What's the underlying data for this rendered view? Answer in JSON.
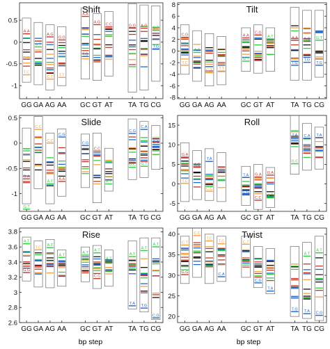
{
  "chart_data": {
    "type": "bar",
    "description_series_colors": {
      "red": "#c0392b",
      "blue": "#1f66c9",
      "orange": "#f0a040",
      "green": "#2ecc40",
      "black": "#111111"
    },
    "categories": [
      "GG",
      "GA",
      "AG",
      "AA",
      "GC",
      "GT",
      "AT",
      "TA",
      "TG",
      "CG"
    ],
    "xlabel": "bp step",
    "panels": [
      {
        "title": "Shift",
        "ylim": [
          -1.3,
          0.9
        ],
        "yticks": [
          -1,
          -0.5,
          0,
          0.5
        ],
        "ytick_labels": [
          "-1",
          "-0.5",
          "0",
          "0.5"
        ],
        "ranges": [
          [
            -0.92,
            0.55
          ],
          [
            -0.98,
            0.45
          ],
          [
            -1.1,
            0.4
          ],
          [
            -1.0,
            0.35
          ],
          [
            -0.85,
            0.78
          ],
          [
            -0.88,
            0.65
          ],
          [
            -0.78,
            0.7
          ],
          [
            -1.15,
            0.88
          ],
          [
            -1.1,
            0.85
          ],
          [
            -0.9,
            0.83
          ]
        ],
        "labels": [
          {
            "cat": 0,
            "text": "A.A",
            "color": "red",
            "value": 0.22
          },
          {
            "cat": 0,
            "text": "T.C",
            "color": "orange",
            "value": -0.72
          },
          {
            "cat": 1,
            "text": "A.T",
            "color": "green",
            "value": -0.08
          },
          {
            "cat": 2,
            "text": "A.G",
            "color": "red",
            "value": 0.15
          },
          {
            "cat": 2,
            "text": "C.T",
            "color": "orange",
            "value": -0.82
          },
          {
            "cat": 3,
            "text": "G.G",
            "color": "red",
            "value": 0.08
          },
          {
            "cat": 3,
            "text": "T.T",
            "color": "orange",
            "value": -0.78
          },
          {
            "cat": 4,
            "text": "A.A",
            "color": "red",
            "value": 0.62
          },
          {
            "cat": 4,
            "text": "T.G",
            "color": "blue",
            "value": -0.3
          },
          {
            "cat": 5,
            "text": "A.G",
            "color": "red",
            "value": 0.43
          },
          {
            "cat": 6,
            "text": "C.C",
            "color": "red",
            "value": 0.38
          },
          {
            "cat": 7,
            "text": "G.G",
            "color": "red",
            "value": 0.35
          },
          {
            "cat": 8,
            "text": "A.G",
            "color": "red",
            "value": 0.35
          },
          {
            "cat": 9,
            "text": "G.T",
            "color": "green",
            "value": 0.3
          },
          {
            "cat": 9,
            "text": "T.G",
            "color": "blue",
            "value": -0.13
          }
        ]
      },
      {
        "title": "Tilt",
        "ylim": [
          -8.2,
          8.3
        ],
        "yticks": [
          -8,
          -6,
          -4,
          -2,
          0,
          2,
          4,
          6,
          8
        ],
        "ytick_labels": [
          "-8",
          "-6",
          "-4",
          "-2",
          "0",
          "2",
          "4",
          "6",
          "8"
        ],
        "ranges": [
          [
            -4.0,
            4.5
          ],
          [
            -5.2,
            3.5
          ],
          [
            -6.0,
            3.0
          ],
          [
            -5.8,
            2.5
          ],
          [
            -3.5,
            4.0
          ],
          [
            -3.8,
            4.5
          ],
          [
            -3.5,
            4.0
          ],
          [
            -5.0,
            7.5
          ],
          [
            -5.0,
            7.0
          ],
          [
            -4.5,
            7.0
          ]
        ],
        "labels": [
          {
            "cat": 0,
            "text": "C.G",
            "color": "red",
            "value": 2.6
          },
          {
            "cat": 0,
            "text": "T.C",
            "color": "orange",
            "value": -2.2
          },
          {
            "cat": 1,
            "text": "A.T",
            "color": "green",
            "value": 0.0
          },
          {
            "cat": 2,
            "text": "C.T",
            "color": "orange",
            "value": -3.5
          },
          {
            "cat": 3,
            "text": "T.T",
            "color": "orange",
            "value": -3.2
          },
          {
            "cat": 4,
            "text": "A.A",
            "color": "red",
            "value": 2.5
          },
          {
            "cat": 4,
            "text": "G.T",
            "color": "green",
            "value": -1.5
          },
          {
            "cat": 5,
            "text": "C.G",
            "color": "red",
            "value": 3.0
          },
          {
            "cat": 6,
            "text": "A.T",
            "color": "green",
            "value": 2.3
          },
          {
            "cat": 7,
            "text": "A.A",
            "color": "red",
            "value": 2.1
          },
          {
            "cat": 7,
            "text": "T.G",
            "color": "blue",
            "value": -2.2
          },
          {
            "cat": 8,
            "text": "A.G",
            "color": "red",
            "value": 1.9
          },
          {
            "cat": 8,
            "text": "T.G",
            "color": "blue",
            "value": -1.7
          },
          {
            "cat": 9,
            "text": "G.T",
            "color": "green",
            "value": 2.1
          },
          {
            "cat": 9,
            "text": "T.G",
            "color": "blue",
            "value": -2.2
          }
        ]
      },
      {
        "title": "Slide",
        "ylim": [
          -1.35,
          0.55
        ],
        "yticks": [
          -1,
          -0.5,
          0,
          0.5
        ],
        "ytick_labels": [
          "-1",
          "-0.5",
          "0",
          "0.5"
        ],
        "ranges": [
          [
            -1.2,
            0.3
          ],
          [
            -0.9,
            0.53
          ],
          [
            -1.2,
            0.2
          ],
          [
            -1.05,
            0.28
          ],
          [
            -0.88,
            0.18
          ],
          [
            -1.18,
            0.2
          ],
          [
            -0.95,
            -0.1
          ],
          [
            -0.72,
            0.48
          ],
          [
            -0.68,
            0.43
          ],
          [
            -0.52,
            0.35
          ]
        ],
        "labels": [
          {
            "cat": 0,
            "text": "G.A",
            "color": "red",
            "value": -0.68
          },
          {
            "cat": 0,
            "text": "G.T",
            "color": "green",
            "value": -1.28
          },
          {
            "cat": 1,
            "text": "C.C",
            "color": "orange",
            "value": 0.3
          },
          {
            "cat": 2,
            "text": "C.C",
            "color": "orange",
            "value": 0.03
          },
          {
            "cat": 2,
            "text": "A.T",
            "color": "green",
            "value": -0.78
          },
          {
            "cat": 3,
            "text": "C.G",
            "color": "blue",
            "value": 0.15
          },
          {
            "cat": 3,
            "text": "A.A",
            "color": "red",
            "value": -0.73
          },
          {
            "cat": 4,
            "text": "C.G",
            "color": "blue",
            "value": -0.02
          },
          {
            "cat": 5,
            "text": "C.C",
            "color": "red",
            "value": -0.13
          },
          {
            "cat": 6,
            "text": "A.T",
            "color": "green",
            "value": -0.78
          },
          {
            "cat": 7,
            "text": "C.G",
            "color": "blue",
            "value": 0.22
          },
          {
            "cat": 7,
            "text": "G.C",
            "color": "green",
            "value": -0.45
          },
          {
            "cat": 8,
            "text": "C.A",
            "color": "blue",
            "value": 0.3
          },
          {
            "cat": 8,
            "text": "G.T",
            "color": "green",
            "value": -0.43
          },
          {
            "cat": 9,
            "text": "C.G",
            "color": "blue",
            "value": 0.0
          }
        ]
      },
      {
        "title": "Roll",
        "ylim": [
          -7.0,
          17.5
        ],
        "yticks": [
          -5,
          0,
          5,
          10,
          15
        ],
        "ytick_labels": [
          "-5",
          "0",
          "5",
          "10",
          "15"
        ],
        "ranges": [
          [
            -4.5,
            10.5
          ],
          [
            -4.0,
            8.5
          ],
          [
            -4.2,
            9.0
          ],
          [
            -4.5,
            8.0
          ],
          [
            -5.5,
            4.5
          ],
          [
            -6.5,
            5.0
          ],
          [
            -6.0,
            4.2
          ],
          [
            2.5,
            17.5
          ],
          [
            3.5,
            15.5
          ],
          [
            3.8,
            14.5
          ]
        ],
        "labels": [
          {
            "cat": 0,
            "text": "G.A",
            "color": "red",
            "value": 7.2
          },
          {
            "cat": 0,
            "text": "T.C",
            "color": "orange",
            "value": 0.5
          },
          {
            "cat": 1,
            "text": "A.C",
            "color": "red",
            "value": 4.6
          },
          {
            "cat": 2,
            "text": "T.A",
            "color": "blue",
            "value": 6.1
          },
          {
            "cat": 2,
            "text": "C.C",
            "color": "orange",
            "value": -1.5
          },
          {
            "cat": 4,
            "text": "T.A",
            "color": "blue",
            "value": 2.0
          },
          {
            "cat": 4,
            "text": "C.G",
            "color": "blue",
            "value": -2.4
          },
          {
            "cat": 5,
            "text": "G.A",
            "color": "red",
            "value": 2.1
          },
          {
            "cat": 5,
            "text": "C.C",
            "color": "red",
            "value": -3.8
          },
          {
            "cat": 6,
            "text": "G.A",
            "color": "red",
            "value": 2.6
          },
          {
            "cat": 6,
            "text": "A.T",
            "color": "green",
            "value": -3.2
          },
          {
            "cat": 7,
            "text": "T.A",
            "color": "blue",
            "value": 12.2
          },
          {
            "cat": 7,
            "text": "G.C",
            "color": "green",
            "value": 5.5
          },
          {
            "cat": 8,
            "text": "C.A",
            "color": "blue",
            "value": 12.0
          },
          {
            "cat": 9,
            "text": "T.A",
            "color": "blue",
            "value": 12.2
          }
        ]
      },
      {
        "title": "Rise",
        "ylim": [
          2.6,
          3.85
        ],
        "yticks": [
          2.6,
          2.8,
          3.0,
          3.2,
          3.4,
          3.6,
          3.8
        ],
        "ytick_labels": [
          "2.6",
          "2.8",
          "3",
          "3.2",
          "3.4",
          "3.6",
          "3.8"
        ],
        "ranges": [
          [
            3.15,
            3.73
          ],
          [
            3.07,
            3.68
          ],
          [
            3.06,
            3.7
          ],
          [
            3.08,
            3.56
          ],
          [
            3.14,
            3.6
          ],
          [
            3.05,
            3.62
          ],
          [
            3.08,
            3.56
          ],
          [
            2.78,
            3.68
          ],
          [
            2.74,
            3.72
          ],
          [
            2.64,
            3.72
          ]
        ],
        "labels": [
          {
            "cat": 0,
            "text": "A.T",
            "color": "green",
            "value": 3.66
          },
          {
            "cat": 0,
            "text": "G.G",
            "color": "red",
            "value": 3.28
          },
          {
            "cat": 1,
            "text": "T.C",
            "color": "orange",
            "value": 3.58
          },
          {
            "cat": 2,
            "text": "A.T",
            "color": "green",
            "value": 3.61
          },
          {
            "cat": 3,
            "text": "A.T",
            "color": "green",
            "value": 3.48
          },
          {
            "cat": 4,
            "text": "A.T",
            "color": "green",
            "value": 3.51
          },
          {
            "cat": 5,
            "text": "A.T",
            "color": "green",
            "value": 3.54
          },
          {
            "cat": 5,
            "text": "C.C",
            "color": "red",
            "value": 3.2
          },
          {
            "cat": 6,
            "text": "A.T",
            "color": "green",
            "value": 3.43
          },
          {
            "cat": 7,
            "text": "A.T",
            "color": "green",
            "value": 3.49
          },
          {
            "cat": 7,
            "text": "T.A",
            "color": "blue",
            "value": 2.84
          },
          {
            "cat": 8,
            "text": "A.T",
            "color": "green",
            "value": 3.57
          },
          {
            "cat": 8,
            "text": "T.G",
            "color": "blue",
            "value": 2.81
          },
          {
            "cat": 9,
            "text": "A.T",
            "color": "green",
            "value": 3.62
          },
          {
            "cat": 9,
            "text": "C.G",
            "color": "blue",
            "value": 2.68
          }
        ]
      },
      {
        "title": "Twist",
        "ylim": [
          18.5,
          41.5
        ],
        "yticks": [
          20,
          25,
          30,
          35,
          40
        ],
        "ytick_labels": [
          "20",
          "25",
          "30",
          "35",
          "40"
        ],
        "ranges": [
          [
            28.0,
            39.5
          ],
          [
            29.5,
            41.5
          ],
          [
            28.0,
            40.0
          ],
          [
            28.5,
            39.5
          ],
          [
            29.5,
            39.5
          ],
          [
            27.0,
            37.0
          ],
          [
            25.5,
            36.5
          ],
          [
            20.0,
            37.0
          ],
          [
            19.5,
            38.0
          ],
          [
            19.0,
            39.5
          ]
        ],
        "labels": [
          {
            "cat": 0,
            "text": "C.T",
            "color": "orange",
            "value": 37.7
          },
          {
            "cat": 0,
            "text": "G.G",
            "color": "red",
            "value": 30.5
          },
          {
            "cat": 1,
            "text": "C.C",
            "color": "orange",
            "value": 40.0
          },
          {
            "cat": 2,
            "text": "T.C",
            "color": "orange",
            "value": 38.7
          },
          {
            "cat": 3,
            "text": "T.C",
            "color": "orange",
            "value": 38.0
          },
          {
            "cat": 3,
            "text": "C.A",
            "color": "blue",
            "value": 30.0
          },
          {
            "cat": 4,
            "text": "C.T",
            "color": "orange",
            "value": 37.9
          },
          {
            "cat": 5,
            "text": "C.G",
            "color": "blue",
            "value": 28.5
          },
          {
            "cat": 6,
            "text": "T.A",
            "color": "blue",
            "value": 26.5
          },
          {
            "cat": 7,
            "text": "T.G",
            "color": "blue",
            "value": 21.5
          },
          {
            "cat": 8,
            "text": "A.T",
            "color": "green",
            "value": 35.0
          },
          {
            "cat": 8,
            "text": "T.A",
            "color": "blue",
            "value": 21.0
          },
          {
            "cat": 9,
            "text": "A.T",
            "color": "green",
            "value": 35.8
          },
          {
            "cat": 9,
            "text": "C.G",
            "color": "blue",
            "value": 20.6
          }
        ]
      }
    ]
  }
}
